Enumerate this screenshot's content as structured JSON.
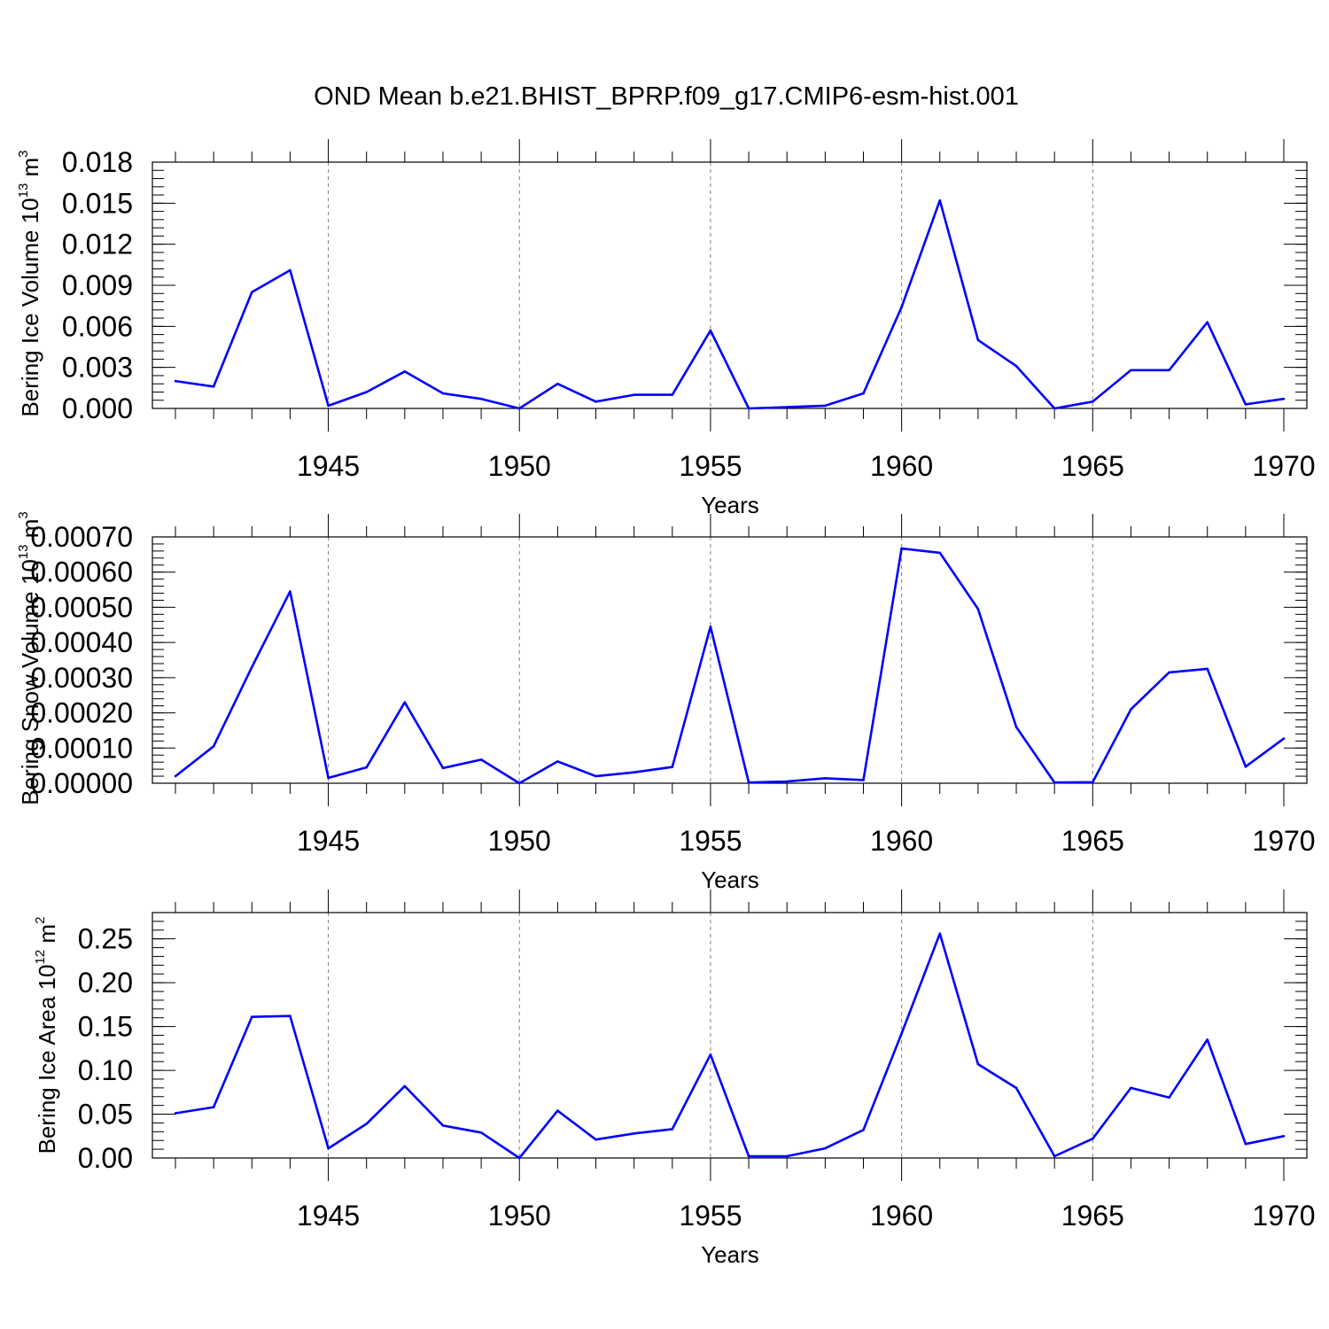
{
  "title": "OND Mean b.e21.BHIST_BPRP.f09_g17.CMIP6-esm-hist.001",
  "colors": {
    "line": "#0000ff",
    "axis": "#000000",
    "grid": "#808080"
  },
  "chart_data": [
    {
      "type": "line",
      "ylabel": {
        "text": "Bering Ice Volume 10",
        "exp": "13",
        "unit": " m",
        "unit_exp": "3"
      },
      "xlabel": "Years",
      "xlim": [
        1941,
        1970
      ],
      "ylim": [
        0,
        0.018
      ],
      "xticks": [
        1945,
        1950,
        1955,
        1960,
        1965,
        1970
      ],
      "yticks": [
        "0.000",
        "0.003",
        "0.006",
        "0.009",
        "0.012",
        "0.015",
        "0.018"
      ],
      "grid_x": [
        1945,
        1950,
        1955,
        1960,
        1965
      ],
      "x": [
        1941,
        1942,
        1943,
        1944,
        1945,
        1946,
        1947,
        1948,
        1949,
        1950,
        1951,
        1952,
        1953,
        1954,
        1955,
        1956,
        1957,
        1958,
        1959,
        1960,
        1961,
        1962,
        1963,
        1964,
        1965,
        1966,
        1967,
        1968,
        1969,
        1970
      ],
      "values": [
        0.002,
        0.0016,
        0.0085,
        0.0101,
        0.0002,
        0.0012,
        0.0027,
        0.0011,
        0.0007,
        0.0,
        0.0018,
        0.0005,
        0.001,
        0.001,
        0.0057,
        0.0,
        0.0001,
        0.0002,
        0.0011,
        0.0074,
        0.0152,
        0.005,
        0.0031,
        0.0,
        0.0005,
        0.0028,
        0.0028,
        0.0063,
        0.0003,
        0.0007
      ]
    },
    {
      "type": "line",
      "ylabel": {
        "text": "Bering Snow Volume 10",
        "exp": "13",
        "unit": " m",
        "unit_exp": "3"
      },
      "xlabel": "Years",
      "xlim": [
        1941,
        1970
      ],
      "ylim": [
        0,
        0.0007
      ],
      "xticks": [
        1945,
        1950,
        1955,
        1960,
        1965,
        1970
      ],
      "yticks": [
        "0.00000",
        "0.00010",
        "0.00020",
        "0.00030",
        "0.00040",
        "0.00050",
        "0.00060",
        "0.00070"
      ],
      "grid_x": [
        1945,
        1950,
        1955,
        1960,
        1965
      ],
      "x": [
        1941,
        1942,
        1943,
        1944,
        1945,
        1946,
        1947,
        1948,
        1949,
        1950,
        1951,
        1952,
        1953,
        1954,
        1955,
        1956,
        1957,
        1958,
        1959,
        1960,
        1961,
        1962,
        1963,
        1964,
        1965,
        1966,
        1967,
        1968,
        1969,
        1970
      ],
      "values": [
        2e-05,
        0.000105,
        0.00033,
        0.000545,
        1.5e-05,
        4.5e-05,
        0.00023,
        4.3e-05,
        6.7e-05,
        0.0,
        6.2e-05,
        2e-05,
        3.1e-05,
        4.6e-05,
        0.000445,
        2e-06,
        5e-06,
        1.4e-05,
        9e-06,
        0.000667,
        0.000655,
        0.000495,
        0.00016,
        2e-06,
        3e-06,
        0.00021,
        0.000315,
        0.000325,
        4.7e-05,
        0.000127
      ]
    },
    {
      "type": "line",
      "ylabel": {
        "text": "Bering Ice Area 10",
        "exp": "12",
        "unit": " m",
        "unit_exp": "2"
      },
      "xlabel": "Years",
      "xlim": [
        1941,
        1970
      ],
      "ylim": [
        0,
        0.28
      ],
      "xticks": [
        1945,
        1950,
        1955,
        1960,
        1965,
        1970
      ],
      "yticks": [
        "0.00",
        "0.05",
        "0.10",
        "0.15",
        "0.20",
        "0.25"
      ],
      "grid_x": [
        1945,
        1950,
        1955,
        1960,
        1965
      ],
      "x": [
        1941,
        1942,
        1943,
        1944,
        1945,
        1946,
        1947,
        1948,
        1949,
        1950,
        1951,
        1952,
        1953,
        1954,
        1955,
        1956,
        1957,
        1958,
        1959,
        1960,
        1961,
        1962,
        1963,
        1964,
        1965,
        1966,
        1967,
        1968,
        1969,
        1970
      ],
      "values": [
        0.051,
        0.058,
        0.161,
        0.162,
        0.011,
        0.039,
        0.082,
        0.037,
        0.029,
        0.0,
        0.054,
        0.021,
        0.028,
        0.033,
        0.118,
        0.002,
        0.002,
        0.011,
        0.032,
        0.142,
        0.256,
        0.107,
        0.08,
        0.002,
        0.022,
        0.08,
        0.069,
        0.135,
        0.016,
        0.025
      ]
    }
  ]
}
